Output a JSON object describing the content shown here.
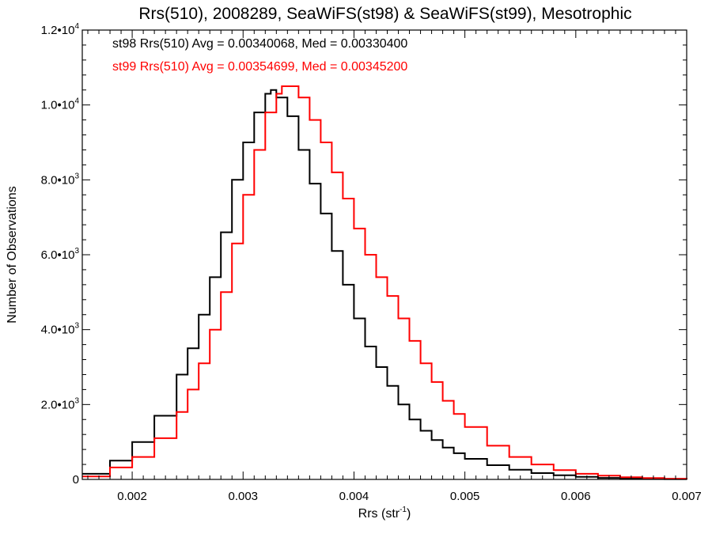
{
  "chart_data": {
    "type": "line",
    "step": true,
    "title": "Rrs(510), 2008289, SeaWiFS(st98) & SeaWiFS(st99), Mesotrophic",
    "xlabel": "Rrs (str",
    "xlabel_sup": "-1",
    "xlabel_suffix": ")",
    "ylabel": "Number of Observations",
    "xlim": [
      0.00155,
      0.007
    ],
    "ylim": [
      0,
      12000
    ],
    "x_ticks": [
      0.002,
      0.003,
      0.004,
      0.005,
      0.006,
      0.007
    ],
    "x_tick_labels": [
      "0.002",
      "0.003",
      "0.004",
      "0.005",
      "0.006",
      "0.007"
    ],
    "y_ticks": [
      0,
      2000,
      4000,
      6000,
      8000,
      10000,
      12000
    ],
    "y_tick_labels": [
      {
        "base": "0",
        "exp": ""
      },
      {
        "base": "2.0•10",
        "exp": "3"
      },
      {
        "base": "4.0•10",
        "exp": "3"
      },
      {
        "base": "6.0•10",
        "exp": "3"
      },
      {
        "base": "8.0•10",
        "exp": "3"
      },
      {
        "base": "1.0•10",
        "exp": "4"
      },
      {
        "base": "1.2•10",
        "exp": "4"
      }
    ],
    "annotations": [
      {
        "text": "st98 Rrs(510) Avg = 0.00340068, Med = 0.00330400",
        "color": "#000000"
      },
      {
        "text": "st99 Rrs(510) Avg = 0.00354699, Med = 0.00345200",
        "color": "#ff0000"
      }
    ],
    "series": [
      {
        "color": "#000000",
        "x": [
          0.00155,
          0.0018,
          0.002,
          0.0022,
          0.0024,
          0.0025,
          0.0026,
          0.0027,
          0.0028,
          0.0029,
          0.003,
          0.0031,
          0.0032,
          0.00325,
          0.0033,
          0.0034,
          0.0035,
          0.0036,
          0.0037,
          0.0038,
          0.0039,
          0.004,
          0.0041,
          0.0042,
          0.0043,
          0.0044,
          0.0045,
          0.0046,
          0.0047,
          0.0048,
          0.0049,
          0.005,
          0.0052,
          0.0054,
          0.0056,
          0.0058,
          0.006,
          0.0062,
          0.0064,
          0.0066,
          0.0068,
          0.007
        ],
        "y": [
          150,
          500,
          1000,
          1700,
          2800,
          3500,
          4400,
          5400,
          6600,
          8000,
          9000,
          9800,
          10300,
          10400,
          10200,
          9700,
          8800,
          7900,
          7100,
          6100,
          5200,
          4300,
          3550,
          3000,
          2500,
          2000,
          1600,
          1300,
          1050,
          850,
          700,
          550,
          380,
          260,
          170,
          110,
          70,
          40,
          25,
          15,
          8,
          0
        ]
      },
      {
        "color": "#ff0000",
        "x": [
          0.00155,
          0.0018,
          0.002,
          0.0022,
          0.0024,
          0.0025,
          0.0026,
          0.0027,
          0.0028,
          0.0029,
          0.003,
          0.0031,
          0.0032,
          0.0033,
          0.00335,
          0.0034,
          0.0035,
          0.0036,
          0.0037,
          0.0038,
          0.0039,
          0.004,
          0.0041,
          0.0042,
          0.0043,
          0.0044,
          0.0045,
          0.0046,
          0.0047,
          0.0048,
          0.0049,
          0.005,
          0.0052,
          0.0054,
          0.0056,
          0.0058,
          0.006,
          0.0062,
          0.0064,
          0.0066,
          0.0068,
          0.007
        ],
        "y": [
          80,
          320,
          600,
          1100,
          1800,
          2400,
          3100,
          4000,
          5000,
          6300,
          7600,
          8800,
          9800,
          10300,
          10500,
          10500,
          10200,
          9600,
          9000,
          8200,
          7500,
          6700,
          6000,
          5400,
          4900,
          4300,
          3700,
          3100,
          2600,
          2100,
          1750,
          1400,
          900,
          600,
          400,
          250,
          150,
          100,
          60,
          35,
          20,
          0
        ]
      }
    ]
  }
}
